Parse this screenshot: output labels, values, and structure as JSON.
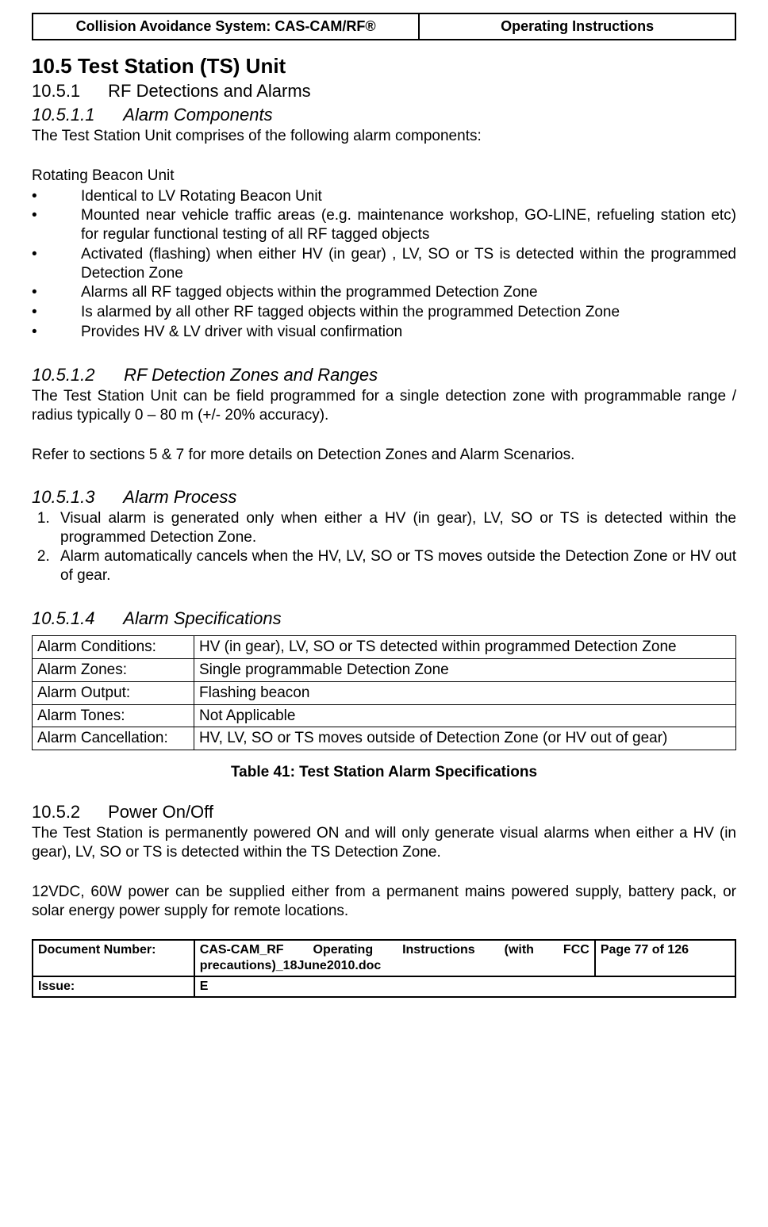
{
  "header": {
    "left": "Collision Avoidance System: CAS-CAM/RF®",
    "right": "Operating Instructions"
  },
  "section": {
    "h1": "10.5 Test Station (TS) Unit",
    "h2_1_num": "10.5.1",
    "h2_1_title": "RF Detections and Alarms",
    "h3_1_num": "10.5.1.1",
    "h3_1_title": "Alarm Components",
    "intro_1": "The Test Station Unit comprises of the following alarm components:",
    "sub_1": "Rotating Beacon Unit",
    "bullets_1": [
      "Identical to LV Rotating Beacon Unit",
      "Mounted near vehicle traffic areas (e.g. maintenance workshop, GO-LINE, refueling station etc) for regular functional testing of all RF tagged objects",
      "Activated (flashing) when either HV (in gear) , LV, SO or TS is detected within the programmed Detection Zone",
      "Alarms all RF tagged objects within the programmed Detection Zone",
      "Is alarmed by all other RF tagged objects within the programmed Detection Zone",
      "Provides HV & LV driver with visual confirmation"
    ],
    "h3_2_num": "10.5.1.2",
    "h3_2_title": "RF Detection Zones and Ranges",
    "para_2a": "The Test Station Unit can be field programmed for a single detection zone with programmable range / radius typically 0 – 80 m (+/- 20% accuracy).",
    "para_2b": "Refer to sections 5 & 7 for more details on Detection Zones and Alarm Scenarios.",
    "h3_3_num": "10.5.1.3",
    "h3_3_title": "Alarm Process",
    "numbered_3": [
      "Visual alarm is generated only when either a HV (in gear), LV, SO or TS is detected within the programmed Detection Zone.",
      "Alarm automatically cancels when the HV, LV, SO or TS moves outside the Detection Zone or HV out of gear."
    ],
    "h3_4_num": "10.5.1.4",
    "h3_4_title": "Alarm Specifications",
    "spec_table": {
      "rows": [
        [
          "Alarm Conditions:",
          "HV (in gear), LV, SO or TS detected within programmed Detection Zone"
        ],
        [
          "Alarm Zones:",
          "Single programmable Detection Zone"
        ],
        [
          "Alarm Output:",
          "Flashing beacon"
        ],
        [
          "Alarm Tones:",
          "Not Applicable"
        ],
        [
          "Alarm Cancellation:",
          "HV, LV, SO or TS moves outside of Detection Zone (or HV out of gear)"
        ]
      ]
    },
    "table_caption": "Table 41:  Test Station Alarm Specifications",
    "h2_2_num": "10.5.2",
    "h2_2_title": "Power On/Off",
    "para_5a": "The Test Station is permanently powered ON and will only generate visual alarms when either a HV (in gear), LV, SO or TS is detected within the TS Detection Zone.",
    "para_5b": "12VDC, 60W power can be supplied either from a permanent mains powered supply, battery pack, or solar energy power supply for remote locations."
  },
  "footer": {
    "doc_label": "Document Number:",
    "doc_value": "CAS-CAM_RF Operating Instructions (with FCC precautions)_18June2010.doc",
    "page": "Page 77 of  126",
    "issue_label": "Issue:",
    "issue_value": "E"
  }
}
